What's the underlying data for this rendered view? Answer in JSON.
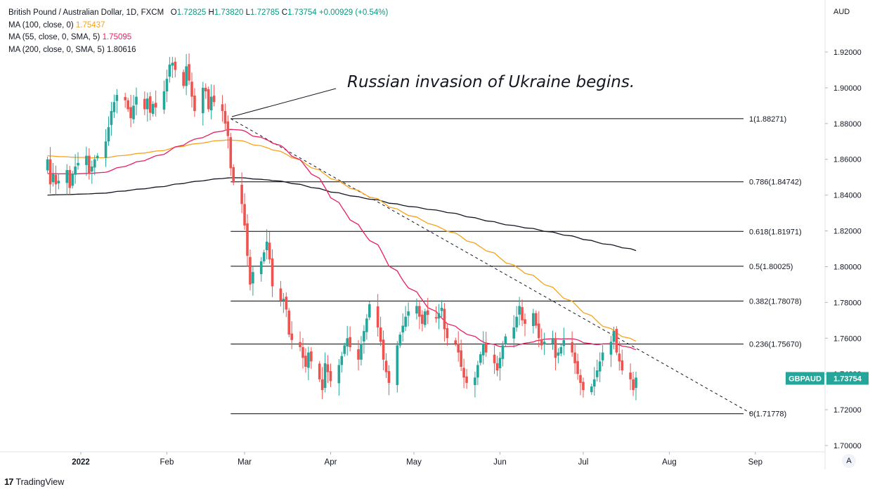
{
  "header": {
    "symbol_line": "British Pound / Australian Dollar, 1D, FXCM",
    "o_label": "O",
    "o_value": "1.72825",
    "h_label": "H",
    "h_value": "1.73820",
    "l_label": "L",
    "l_value": "1.72785",
    "c_label": "C",
    "c_value": "1.73754",
    "change": "+0.00929 (+0.54%)"
  },
  "indicators": [
    {
      "label": "MA (100, close, 0)",
      "value": "1.75437",
      "color": "#f7a21b"
    },
    {
      "label": "MA (55, close, 0, SMA, 5)",
      "value": "1.75095",
      "color": "#e91e63"
    },
    {
      "label": "MA (200, close, 0, SMA, 5)",
      "value": "1.80616",
      "color": "#131722"
    }
  ],
  "currency_label": "AUD",
  "price_badge": {
    "symbol": "GBPAUD",
    "value": "1.73754",
    "color": "#26a69a"
  },
  "annotation": "Russian invasion of Ukraine begins.",
  "footer": {
    "brand": "TradingView",
    "auto_button": "A"
  },
  "colors": {
    "up": "#26a69a",
    "down": "#ef5350",
    "ma100": "#f7a21b",
    "ma55": "#e91e63",
    "ma200": "#131722"
  },
  "chart_data": {
    "type": "candlestick",
    "y_axis": {
      "ticks": [
        "1.70000",
        "1.72000",
        "1.74000",
        "1.76000",
        "1.78000",
        "1.80000",
        "1.82000",
        "1.84000",
        "1.86000",
        "1.88000",
        "1.90000",
        "1.92000"
      ],
      "ylim": [
        1.695,
        1.935
      ]
    },
    "x_axis": {
      "ticks": [
        "2022",
        "Feb",
        "Mar",
        "Apr",
        "May",
        "Jun",
        "Jul",
        "Aug",
        "Sep"
      ]
    },
    "fibonacci": [
      {
        "label": "1(1.88271)",
        "value": 1.88271
      },
      {
        "label": "0.786(1.84742)",
        "value": 1.84742
      },
      {
        "label": "0.618(1.81971)",
        "value": 1.81971
      },
      {
        "label": "0.5(1.80025)",
        "value": 1.80025
      },
      {
        "label": "0.382(1.78078)",
        "value": 1.78078
      },
      {
        "label": "0.236(1.75670)",
        "value": 1.7567
      },
      {
        "label": "0(1.71778)",
        "value": 1.71778
      }
    ],
    "trendline": {
      "from": {
        "x": "2022-02-24",
        "y": 1.8827
      },
      "to": {
        "x": "2022-08-31",
        "y": 1.7175
      }
    },
    "anchors": {
      "first_candle": "2021-12-20",
      "last_candle": "2022-08-09"
    },
    "closes": [
      1.86,
      1.846,
      1.852,
      1.846,
      1.848,
      1.854,
      1.844,
      1.852,
      1.856,
      1.858,
      1.862,
      1.852,
      1.856,
      1.86,
      1.862,
      1.87,
      1.878,
      1.887,
      1.892,
      1.896,
      1.893,
      1.888,
      1.883,
      1.89,
      1.895,
      1.888,
      1.894,
      1.886,
      1.891,
      1.889,
      1.898,
      1.905,
      1.913,
      1.914,
      1.91,
      1.901,
      1.912,
      1.904,
      1.895,
      1.887,
      1.9,
      1.898,
      1.888,
      1.895,
      1.892,
      1.887,
      1.88,
      1.873,
      1.855,
      1.847,
      1.835,
      1.823,
      1.806,
      1.79,
      1.797,
      1.803,
      1.808,
      1.814,
      1.804,
      1.789,
      1.781,
      1.782,
      1.776,
      1.762,
      1.759,
      1.755,
      1.749,
      1.744,
      1.752,
      1.747,
      1.737,
      1.731,
      1.746,
      1.741,
      1.736,
      1.745,
      1.75,
      1.756,
      1.76,
      1.755,
      1.748,
      1.757,
      1.764,
      1.771,
      1.779,
      1.766,
      1.758,
      1.748,
      1.741,
      1.735,
      1.756,
      1.762,
      1.767,
      1.772,
      1.775,
      1.778,
      1.772,
      1.768,
      1.775,
      1.773,
      1.771,
      1.774,
      1.777,
      1.765,
      1.76,
      1.757,
      1.752,
      1.744,
      1.738,
      1.735,
      1.738,
      1.745,
      1.751,
      1.757,
      1.752,
      1.746,
      1.742,
      1.749,
      1.756,
      1.761,
      1.766,
      1.772,
      1.778,
      1.77,
      1.768,
      1.774,
      1.767,
      1.76,
      1.756,
      1.758,
      1.76,
      1.749,
      1.752,
      1.755,
      1.759,
      1.752,
      1.746,
      1.74,
      1.735,
      1.731,
      1.733,
      1.737,
      1.742,
      1.747,
      1.752,
      1.758,
      1.764,
      1.752,
      1.747,
      1.742,
      1.737,
      1.731,
      1.738
    ]
  }
}
